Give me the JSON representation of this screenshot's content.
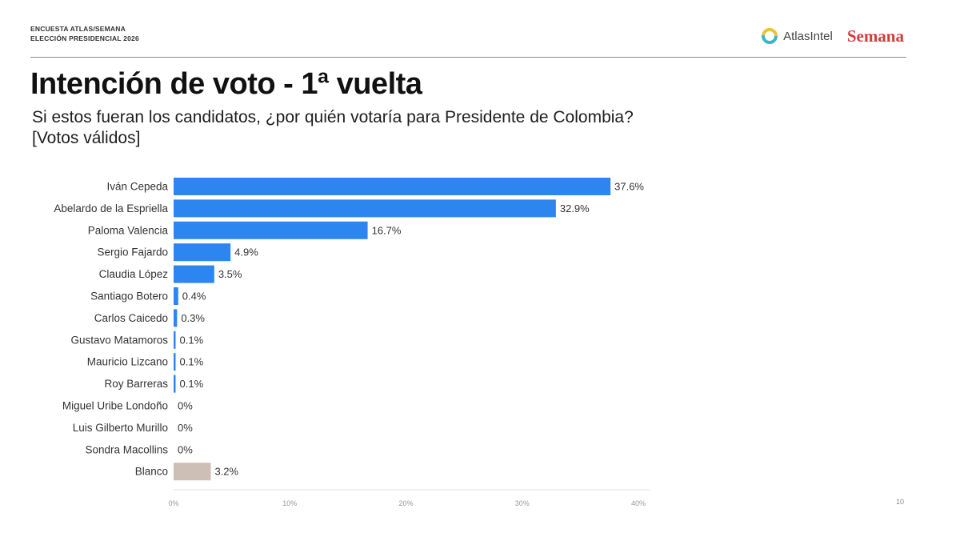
{
  "header": {
    "topline_1": "ENCUESTA ATLAS/SEMANA",
    "topline_2": "ELECCIÓN PRESIDENCIAL 2026",
    "atlas_brand": "AtlasIntel",
    "semana_brand": "Semana"
  },
  "footer": {
    "page_number": "10"
  },
  "colors": {
    "primary_bar": "#2d86f0",
    "blank_bar": "#cdbfb5",
    "atlas_ring_a": "#35b9c9",
    "atlas_ring_b": "#e7c43a"
  },
  "chart_data": {
    "type": "bar",
    "orientation": "horizontal",
    "title": "Intención de voto - 1ª vuelta",
    "subtitle_line1": "Si estos fueran los candidatos, ¿por quién votaría para Presidente de Colombia?",
    "subtitle_line2": "[Votos válidos]",
    "categories": [
      "Iván Cepeda",
      "Abelardo de la Espriella",
      "Paloma Valencia",
      "Sergio Fajardo",
      "Claudia López",
      "Santiago Botero",
      "Carlos Caicedo",
      "Gustavo Matamoros",
      "Mauricio Lizcano",
      "Roy Barreras",
      "Miguel Uribe Londoño",
      "Luis Gilberto Murillo",
      "Sondra Macollins",
      "Blanco"
    ],
    "values": [
      37.6,
      32.9,
      16.7,
      4.9,
      3.5,
      0.4,
      0.3,
      0.1,
      0.1,
      0.1,
      0,
      0,
      0,
      3.2
    ],
    "labels": [
      "37.6%",
      "32.9%",
      "16.7%",
      "4.9%",
      "3.5%",
      "0.4%",
      "0.3%",
      "0.1%",
      "0.1%",
      "0.1%",
      "0%",
      "0%",
      "0%",
      "3.2%"
    ],
    "xlim": [
      0,
      40
    ],
    "xticks": [
      0,
      10,
      20,
      30,
      40
    ],
    "xtick_labels": [
      "0%",
      "10%",
      "20%",
      "30%",
      "40%"
    ],
    "grid": false
  }
}
